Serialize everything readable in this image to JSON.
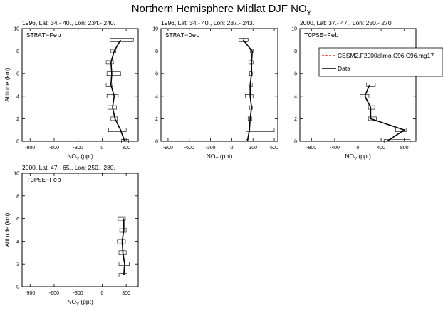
{
  "title": "Northern Hemisphere Midlat DJF NO",
  "title_sub": "Y",
  "legend": {
    "model_label": "CESM2.F2000climo.C96.C96.mg17",
    "obs_label": "Data",
    "model_color": "#ff0000",
    "obs_color": "#000000"
  },
  "chart_data": [
    {
      "type": "line",
      "info": "1996, Lat: 34.- 40., Lon: 234.- 240.",
      "campaign": "STRAT−Feb",
      "xlabel": "NO",
      "xlabel_sub": "Y",
      "xlabel_unit": " (ppt)",
      "ylabel": "Altitude (km)",
      "xlim": [
        -1000,
        450
      ],
      "ylim": [
        0,
        10
      ],
      "xticks": [
        -900,
        -600,
        -300,
        0,
        300
      ],
      "yticks": [
        0,
        2,
        4,
        6,
        8,
        10
      ],
      "series": [
        {
          "altitude": [
            0,
            1,
            2,
            3,
            4,
            5,
            6,
            7,
            8,
            9
          ],
          "mean": [
            280,
            230,
            160,
            130,
            150,
            110,
            120,
            110,
            150,
            230
          ],
          "box_low": [
            240,
            80,
            110,
            70,
            60,
            50,
            60,
            50,
            110,
            100
          ],
          "box_high": [
            330,
            300,
            190,
            180,
            200,
            130,
            230,
            140,
            170,
            390
          ]
        }
      ]
    },
    {
      "type": "line",
      "info": "1996, Lat: 34.- 40., Lon: 237.- 243.",
      "campaign": "STRAT−Dec",
      "xlabel": "NO",
      "xlabel_sub": "Y",
      "xlabel_unit": " (ppt)",
      "ylabel": "",
      "xlim": [
        -1000,
        650
      ],
      "ylim": [
        0,
        10
      ],
      "xticks": [
        -900,
        -600,
        -300,
        0,
        300,
        600
      ],
      "yticks": [
        0,
        2,
        4,
        6,
        8,
        10
      ],
      "series": [
        {
          "altitude": [
            0,
            1,
            2,
            3,
            4,
            5,
            6,
            7,
            8,
            9
          ],
          "mean": [
            220,
            250,
            260,
            280,
            260,
            260,
            280,
            280,
            290,
            160
          ],
          "box_low": [
            200,
            200,
            230,
            250,
            190,
            240,
            250,
            240,
            260,
            100
          ],
          "box_high": [
            240,
            600,
            280,
            290,
            300,
            290,
            290,
            300,
            300,
            230
          ]
        }
      ]
    },
    {
      "type": "line",
      "info": "2000, Lat: 37.- 47., Lon: 250.- 270.",
      "campaign": "TOPSE−Feb",
      "xlabel": "NO",
      "xlabel_sub": "Y",
      "xlabel_unit": " (ppt)",
      "ylabel": "",
      "xlim": [
        -1000,
        1000
      ],
      "ylim": [
        0,
        10
      ],
      "xticks": [
        -800,
        -400,
        0,
        400,
        800
      ],
      "yticks": [
        0,
        2,
        4,
        6,
        8,
        10
      ],
      "series": [
        {
          "altitude": [
            0,
            1,
            2,
            3,
            4,
            5
          ],
          "mean": [
            500,
            800,
            220,
            220,
            120,
            200
          ],
          "box_low": [
            450,
            650,
            180,
            180,
            40,
            150
          ],
          "box_high": [
            900,
            830,
            320,
            290,
            190,
            300
          ]
        }
      ]
    },
    {
      "type": "line",
      "info": "2000, Lat: 47.- 65., Lon: 250.- 280.",
      "campaign": "TOPSE−Feb",
      "xlabel": "NO",
      "xlabel_sub": "Y",
      "xlabel_unit": " (ppt)",
      "ylabel": "Altitude (km)",
      "xlim": [
        -1000,
        450
      ],
      "ylim": [
        0,
        10
      ],
      "xticks": [
        -900,
        -600,
        -300,
        0,
        300
      ],
      "yticks": [
        0,
        2,
        4,
        6,
        8,
        10
      ],
      "series": [
        {
          "altitude": [
            1,
            2,
            3,
            4,
            5,
            6
          ],
          "mean": [
            270,
            280,
            260,
            250,
            270,
            270
          ],
          "box_low": [
            210,
            210,
            210,
            190,
            220,
            200
          ],
          "box_high": [
            310,
            340,
            300,
            290,
            300,
            290
          ]
        }
      ]
    }
  ]
}
